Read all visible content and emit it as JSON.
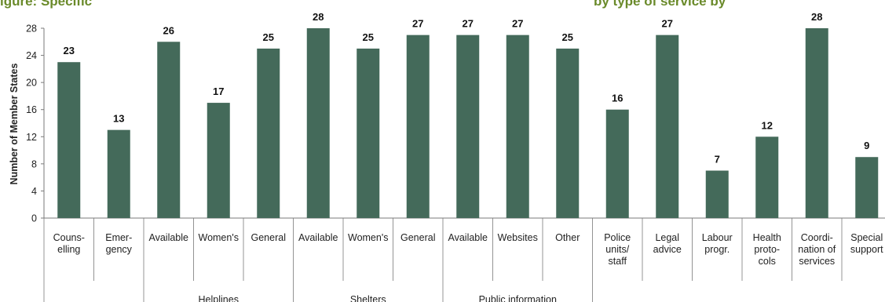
{
  "header": {
    "title_fragment_left": "igure: Specific",
    "title_fragment_right": "by type of service by"
  },
  "colors": {
    "bar": "#446a5a",
    "axis": "#7a7a7a",
    "title": "#6a8a2a"
  },
  "chart_data": {
    "type": "bar",
    "ylabel": "Number of Member States",
    "ylim": [
      0,
      28
    ],
    "yticks": [
      0,
      4,
      8,
      12,
      16,
      20,
      24,
      28
    ],
    "categories": [
      [
        "Couns-",
        "elling"
      ],
      [
        "Emer-",
        "gency"
      ],
      [
        "Available"
      ],
      [
        "Women's"
      ],
      [
        "General"
      ],
      [
        "Available"
      ],
      [
        "Women's"
      ],
      [
        "General"
      ],
      [
        "Available"
      ],
      [
        "Websites"
      ],
      [
        "Other"
      ],
      [
        "Police",
        "units/",
        "staff"
      ],
      [
        "Legal",
        "advice"
      ],
      [
        "Labour",
        "progr."
      ],
      [
        "Health",
        "proto-",
        "cols"
      ],
      [
        "Coordi-",
        "nation of",
        "services"
      ],
      [
        "Special",
        "support"
      ]
    ],
    "values": [
      23,
      13,
      26,
      17,
      25,
      28,
      25,
      27,
      27,
      27,
      25,
      16,
      27,
      7,
      12,
      28,
      9
    ],
    "groups": [
      {
        "label": "Helplines",
        "start": 2,
        "end": 4
      },
      {
        "label": "Shelters",
        "start": 5,
        "end": 7
      },
      {
        "label": "Public information",
        "start": 8,
        "end": 10
      }
    ]
  }
}
